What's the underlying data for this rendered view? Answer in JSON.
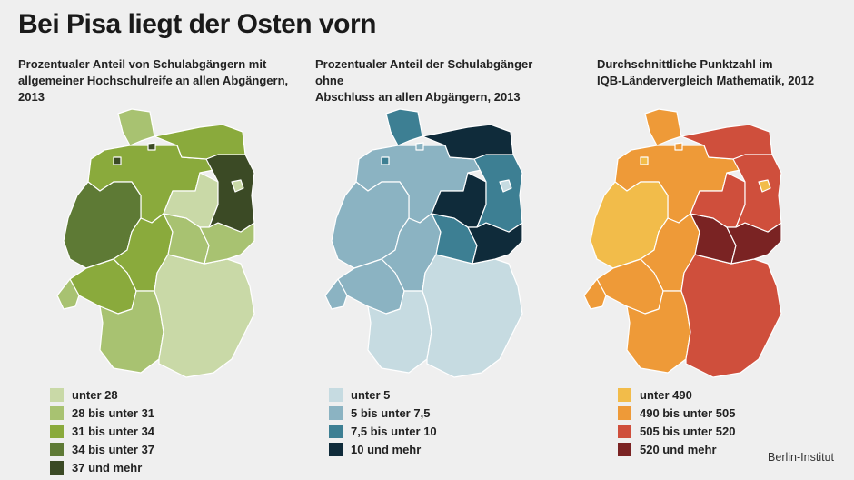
{
  "title": "Bei Pisa liegt der Osten vorn",
  "source": "Berlin-Institut",
  "maps": [
    {
      "subtitle_line1": "Prozentualer Anteil von Schulabgängern mit",
      "subtitle_line2": "allgemeiner Hochschulreife an allen Abgängern, 2013",
      "legend": [
        {
          "label": "unter 28",
          "color": "#c9d9a7"
        },
        {
          "label": "28 bis unter 31",
          "color": "#a8c271"
        },
        {
          "label": "31 bis unter 34",
          "color": "#8aaa3c"
        },
        {
          "label": "34 bis unter 37",
          "color": "#5e7a35"
        },
        {
          "label": "37 und mehr",
          "color": "#3b4a25"
        }
      ],
      "regions": {
        "SH": 1,
        "HH": 4,
        "HB": 4,
        "NI": 2,
        "MV": 2,
        "BB": 4,
        "BE": 0,
        "ST": 0,
        "NW": 3,
        "HE": 2,
        "TH": 1,
        "SN": 1,
        "RP": 2,
        "SL": 1,
        "BW": 1,
        "BY": 0
      }
    },
    {
      "subtitle_line1": "Prozentualer Anteil der Schulabgänger ohne",
      "subtitle_line2": "Abschluss an allen Abgängern, 2013",
      "legend": [
        {
          "label": "unter 5",
          "color": "#c6dbe1"
        },
        {
          "label": "5 bis unter 7,5",
          "color": "#8bb3c2"
        },
        {
          "label": "7,5 bis unter 10",
          "color": "#3d7f93"
        },
        {
          "label": "10 und mehr",
          "color": "#0f2b3a"
        }
      ],
      "regions": {
        "SH": 2,
        "HH": 1,
        "HB": 2,
        "NI": 1,
        "MV": 3,
        "BB": 2,
        "BE": 0,
        "ST": 3,
        "NW": 1,
        "HE": 1,
        "TH": 2,
        "SN": 3,
        "RP": 1,
        "SL": 1,
        "BW": 0,
        "BY": 0
      }
    },
    {
      "subtitle_line1": "Durchschnittliche Punktzahl im",
      "subtitle_line2": "IQB-Ländervergleich Mathematik, 2012",
      "legend": [
        {
          "label": "unter 490",
          "color": "#f2bc4a"
        },
        {
          "label": "490 bis unter 505",
          "color": "#ee9a38"
        },
        {
          "label": "505 bis unter 520",
          "color": "#cf4f3c"
        },
        {
          "label": "520 und mehr",
          "color": "#7a2323"
        }
      ],
      "regions": {
        "SH": 1,
        "HH": 1,
        "HB": 0,
        "NI": 1,
        "MV": 2,
        "BB": 2,
        "BE": 0,
        "ST": 2,
        "NW": 0,
        "HE": 1,
        "TH": 3,
        "SN": 3,
        "RP": 1,
        "SL": 1,
        "BW": 1,
        "BY": 2
      }
    }
  ]
}
